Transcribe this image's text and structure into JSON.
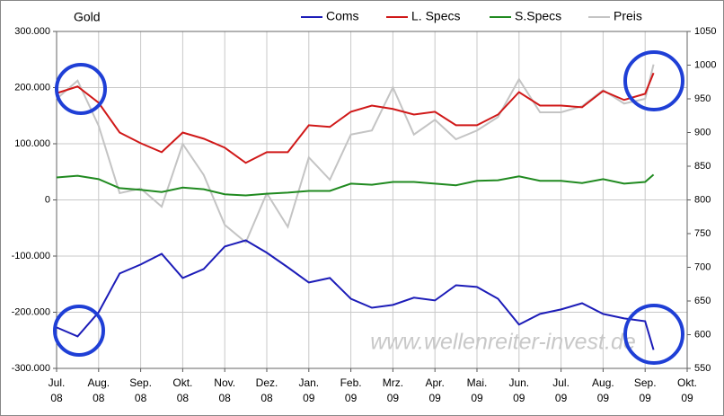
{
  "chart_data": {
    "type": "line",
    "title": "Gold",
    "watermark": "www.wellenreiter-invest.de",
    "grid": true,
    "x": [
      0,
      0.5,
      1,
      1.5,
      2,
      2.5,
      3,
      3.5,
      4,
      4.5,
      5,
      5.5,
      6,
      6.5,
      7,
      7.5,
      8,
      8.5,
      9,
      9.5,
      10,
      10.5,
      11,
      11.5,
      12,
      12.5,
      13,
      13.5,
      14,
      14.2
    ],
    "xlim": [
      0,
      15
    ],
    "xticks": [
      {
        "value": 0,
        "label": "Jul.\n08"
      },
      {
        "value": 1,
        "label": "Aug.\n08"
      },
      {
        "value": 2,
        "label": "Sep.\n08"
      },
      {
        "value": 3,
        "label": "Okt.\n08"
      },
      {
        "value": 4,
        "label": "Nov.\n08"
      },
      {
        "value": 5,
        "label": "Dez.\n08"
      },
      {
        "value": 6,
        "label": "Jan.\n09"
      },
      {
        "value": 7,
        "label": "Feb.\n09"
      },
      {
        "value": 8,
        "label": "Mrz.\n09"
      },
      {
        "value": 9,
        "label": "Apr.\n09"
      },
      {
        "value": 10,
        "label": "Mai.\n09"
      },
      {
        "value": 11,
        "label": "Jun.\n09"
      },
      {
        "value": 12,
        "label": "Jul.\n09"
      },
      {
        "value": 13,
        "label": "Aug.\n09"
      },
      {
        "value": 14,
        "label": "Sep.\n09"
      },
      {
        "value": 15,
        "label": "Okt.\n09"
      }
    ],
    "ylim": [
      -300000,
      300000
    ],
    "yticks": [
      {
        "value": 300000,
        "label": "300.000"
      },
      {
        "value": 200000,
        "label": "200.000"
      },
      {
        "value": 100000,
        "label": "100.000"
      },
      0,
      {
        "value": -100000,
        "label": "-100.000"
      },
      {
        "value": -200000,
        "label": "-200.000"
      },
      {
        "value": -300000,
        "label": "-300.000"
      }
    ],
    "y2lim": [
      550,
      1050
    ],
    "y2ticks": [
      1050,
      1000,
      950,
      900,
      850,
      800,
      750,
      700,
      650,
      600,
      550
    ],
    "series": [
      {
        "name": "Coms",
        "color": "#1c1cb8",
        "values": [
          -227000,
          -243000,
          -200000,
          -131000,
          -115000,
          -96000,
          -139000,
          -123000,
          -83000,
          -72000,
          -94000,
          -120000,
          -147000,
          -139000,
          -176000,
          -192000,
          -187000,
          -174000,
          -179000,
          -152000,
          -155000,
          -176000,
          -222000,
          -203000,
          -195000,
          -184000,
          -203000,
          -211000,
          -216000,
          -267000
        ]
      },
      {
        "name": "L. Specs",
        "color": "#d01818",
        "values": [
          190000,
          202000,
          173000,
          120000,
          101000,
          85000,
          120000,
          109000,
          93000,
          66000,
          85000,
          85000,
          133000,
          130000,
          157000,
          168000,
          162000,
          152000,
          157000,
          133000,
          133000,
          152000,
          192000,
          168000,
          168000,
          165000,
          194000,
          178000,
          189000,
          226000
        ]
      },
      {
        "name": "S.Specs",
        "color": "#208a20",
        "values": [
          40000,
          43000,
          37000,
          21000,
          18000,
          14000,
          22000,
          19000,
          10000,
          8000,
          11000,
          13000,
          16000,
          16000,
          29000,
          27000,
          32000,
          32000,
          29000,
          26000,
          34000,
          35000,
          42000,
          34000,
          34000,
          30000,
          37000,
          29000,
          32000,
          45000
        ]
      },
      {
        "name": "Preis",
        "color": "#c4c4c4",
        "axis": "y2",
        "values": [
          950,
          977,
          910,
          810,
          817,
          790,
          883,
          837,
          763,
          737,
          810,
          760,
          863,
          830,
          897,
          903,
          967,
          897,
          919,
          890,
          903,
          923,
          979,
          930,
          930,
          939,
          963,
          943,
          950,
          1001
        ]
      }
    ]
  }
}
